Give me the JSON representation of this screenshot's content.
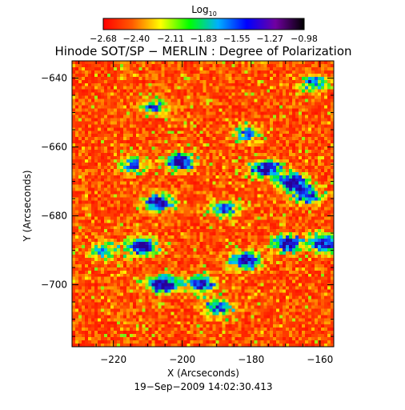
{
  "chart_data": {
    "type": "heatmap",
    "title": "Hinode SOT/SP − MERLIN : Degree of Polarization",
    "xlabel": "X (Arcseconds)",
    "ylabel": "Y (Arcseconds)",
    "footer": "19−Sep−2009 14:02:30.413",
    "xlim": [
      -232,
      -156
    ],
    "ylim": [
      -718,
      -635
    ],
    "x_ticks": [
      -220,
      -200,
      -180,
      -160
    ],
    "x_tick_labels": [
      "−220",
      "−200",
      "−180",
      "−160"
    ],
    "y_ticks": [
      -640,
      -660,
      -680,
      -700
    ],
    "y_tick_labels": [
      "−640",
      "−660",
      "−680",
      "−700"
    ],
    "colorbar": {
      "label": "Log",
      "label_subscript": "10",
      "min": -2.68,
      "max": -0.98,
      "tick_values": [
        -2.68,
        -2.4,
        -2.11,
        -1.83,
        -1.55,
        -1.27,
        -0.98
      ],
      "tick_labels": [
        "−2.68",
        "−2.40",
        "−2.11",
        "−1.83",
        "−1.55",
        "−1.27",
        "−0.98"
      ],
      "colors": [
        "#ff0000",
        "#ff5a00",
        "#ffff00",
        "#00ff00",
        "#00b0ff",
        "#0000ff",
        "#7000a0",
        "#000000"
      ]
    },
    "features": [
      {
        "x": -206,
        "y": -700,
        "strength": 1.0
      },
      {
        "x": -212,
        "y": -689,
        "strength": 0.95
      },
      {
        "x": -207,
        "y": -676,
        "strength": 0.9
      },
      {
        "x": -201,
        "y": -664,
        "strength": 0.9
      },
      {
        "x": -195,
        "y": -700,
        "strength": 0.8
      },
      {
        "x": -182,
        "y": -693,
        "strength": 0.85
      },
      {
        "x": -176,
        "y": -666,
        "strength": 0.95
      },
      {
        "x": -168,
        "y": -670,
        "strength": 0.95
      },
      {
        "x": -164,
        "y": -674,
        "strength": 0.8
      },
      {
        "x": -170,
        "y": -688,
        "strength": 0.85
      },
      {
        "x": -159,
        "y": -688,
        "strength": 0.9
      },
      {
        "x": -188,
        "y": -678,
        "strength": 0.7
      },
      {
        "x": -190,
        "y": -707,
        "strength": 0.7
      },
      {
        "x": -215,
        "y": -665,
        "strength": 0.55
      },
      {
        "x": -182,
        "y": -656,
        "strength": 0.55
      },
      {
        "x": -162,
        "y": -641,
        "strength": 0.6
      },
      {
        "x": -209,
        "y": -648,
        "strength": 0.5
      },
      {
        "x": -223,
        "y": -690,
        "strength": 0.5
      }
    ]
  }
}
